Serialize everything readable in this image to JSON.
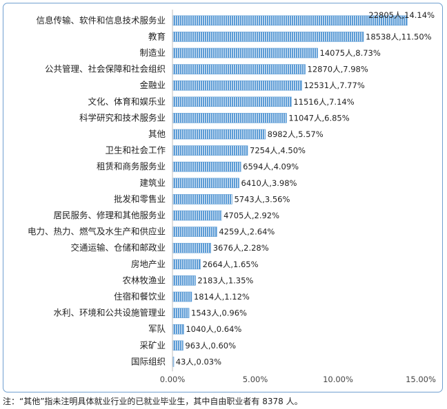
{
  "chart_data": {
    "type": "bar",
    "orientation": "horizontal",
    "categories": [
      "信息传输、软件和信息技术服务业",
      "教育",
      "制造业",
      "公共管理、社会保障和社会组织",
      "金融业",
      "文化、体育和娱乐业",
      "科学研究和技术服务业",
      "其他",
      "卫生和社会工作",
      "租赁和商务服务业",
      "建筑业",
      "批发和零售业",
      "居民服务、修理和其他服务业",
      "电力、热力、燃气及水生产和供应业",
      "交通运输、仓储和邮政业",
      "房地产业",
      "农林牧渔业",
      "住宿和餐饮业",
      "水利、环境和公共设施管理业",
      "军队",
      "采矿业",
      "国际组织"
    ],
    "values": [
      14.14,
      11.5,
      8.73,
      7.98,
      7.77,
      7.14,
      6.85,
      5.57,
      4.5,
      4.09,
      3.98,
      3.56,
      2.92,
      2.64,
      2.28,
      1.65,
      1.35,
      1.12,
      0.96,
      0.64,
      0.6,
      0.03
    ],
    "data_labels": [
      "22805人,14.14%",
      "18538人,11.50%",
      "14075人,8.73%",
      "12870人,7.98%",
      "12531人,7.77%",
      "11516人,7.14%",
      "11047人,6.85%",
      "8982人,5.57%",
      "7254人,4.50%",
      "6594人,4.09%",
      "6410人,3.98%",
      "5743人,3.56%",
      "4705人,2.92%",
      "4259人,2.64%",
      "3676人,2.28%",
      "2664人,1.65%",
      "2183人,1.35%",
      "1814人,1.12%",
      "1543人,0.96%",
      "1040人,0.64%",
      "963人,0.60%",
      "43人,0.03%"
    ],
    "x_ticks": [
      "0.00%",
      "5.00%",
      "10.00%",
      "15.00%"
    ],
    "x_tick_values": [
      0,
      5,
      10,
      15
    ],
    "xlim": [
      0,
      15
    ],
    "grid": false,
    "legend": "none",
    "bar_color": "#5b9bd5",
    "title": "",
    "xlabel": "",
    "ylabel": ""
  },
  "footnote": "注：“其他”指未注明具体就业行业的已就业毕业生，其中自由职业者有 8378 人。"
}
